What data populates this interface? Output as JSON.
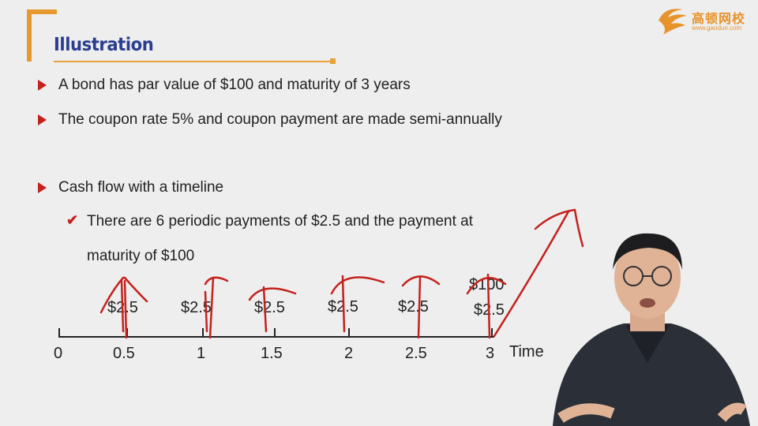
{
  "slide": {
    "title": "Illustration",
    "logo": {
      "brand": "高顿网校",
      "url": "www.gaodun.com"
    },
    "bullets": [
      "A bond has par value of $100 and maturity of 3 years",
      "The coupon rate 5% and coupon payment are made semi-annually",
      "Cash flow with a timeline"
    ],
    "sub_bullet_line1": "There are 6 periodic payments of $2.5 and the payment at",
    "sub_bullet_line2": "maturity of $100",
    "timeline": {
      "ticks": [
        "0",
        "0.5",
        "1",
        "1.5",
        "2",
        "2.5",
        "3"
      ],
      "axis_label": "Time",
      "payments": [
        "$2.5",
        "$2.5",
        "$2.5",
        "$2.5",
        "$2.5",
        "$2.5"
      ],
      "maturity_payment": "$100"
    },
    "colors": {
      "accent_orange": "#e8a23a",
      "title_blue": "#2a3d8f",
      "ink_red": "#c4221d"
    }
  }
}
